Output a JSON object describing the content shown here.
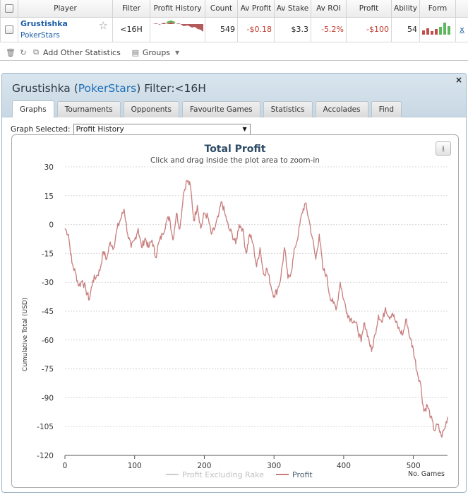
{
  "stats_table": {
    "headers": [
      "Player",
      "Filter",
      "Profit History",
      "Count",
      "Av Profit",
      "Av Stake",
      "Av ROI",
      "Profit",
      "Ability",
      "Form"
    ],
    "row": {
      "player_name": "Grustishka",
      "site": "PokerStars",
      "filter": "<16H",
      "count": "549",
      "av_profit": "-$0.18",
      "av_stake": "$3.3",
      "av_roi": "-5.2%",
      "profit": "-$100",
      "ability": "54",
      "remove": "x"
    },
    "toolbar": {
      "add_stats_label": "Add Other Statistics",
      "groups_label": "Groups"
    }
  },
  "window": {
    "title_prefix": "Grustishka (",
    "title_site": "PokerStars",
    "title_suffix": ") Filter:<16H",
    "close": "×",
    "tabs": [
      "Graphs",
      "Tournaments",
      "Opponents",
      "Favourite Games",
      "Statistics",
      "Accolades",
      "Find"
    ],
    "active_tab": "Graphs",
    "graph_selected_label": "Graph Selected:",
    "graph_selected_value": "Profit History"
  },
  "colors": {
    "negative": "#c0392b",
    "profit_line": "#c87d7d",
    "rake_line": "#cccccc",
    "accent": "#1d6fb8"
  },
  "chart_data": {
    "type": "line",
    "title": "Total Profit",
    "subtitle": "Click and drag inside the plot area to zoom-in",
    "ylabel": "Cumulative Total (USD)",
    "xlabel": "No. Games",
    "xlim": [
      0,
      549
    ],
    "ylim": [
      -120,
      30
    ],
    "x_ticks": [
      0,
      100,
      200,
      300,
      400,
      500
    ],
    "y_ticks": [
      30,
      15,
      0,
      -15,
      -30,
      -45,
      -60,
      -75,
      -90,
      -105,
      -120
    ],
    "legend": [
      "Profit Excluding Rake",
      "Profit"
    ],
    "series": [
      {
        "name": "Profit",
        "x": [
          0,
          5,
          10,
          15,
          20,
          25,
          30,
          35,
          40,
          45,
          50,
          55,
          60,
          65,
          70,
          75,
          80,
          85,
          90,
          95,
          100,
          105,
          110,
          115,
          120,
          125,
          130,
          135,
          140,
          145,
          150,
          155,
          160,
          165,
          170,
          175,
          180,
          185,
          190,
          195,
          200,
          205,
          210,
          215,
          220,
          225,
          230,
          235,
          240,
          245,
          250,
          255,
          260,
          265,
          270,
          275,
          280,
          285,
          290,
          295,
          300,
          305,
          310,
          315,
          320,
          325,
          330,
          335,
          340,
          345,
          350,
          355,
          360,
          365,
          370,
          375,
          380,
          385,
          390,
          395,
          400,
          405,
          410,
          415,
          420,
          425,
          430,
          435,
          440,
          445,
          450,
          455,
          460,
          465,
          470,
          475,
          480,
          485,
          490,
          495,
          500,
          505,
          510,
          515,
          520,
          525,
          530,
          535,
          540,
          545,
          549
        ],
        "y": [
          -2,
          -5,
          -20,
          -25,
          -32,
          -29,
          -34,
          -39,
          -29,
          -27,
          -24,
          -14,
          -18,
          -9,
          -12,
          -2,
          3,
          8,
          -5,
          -12,
          -8,
          -2,
          -12,
          -7,
          -12,
          -8,
          -17,
          -9,
          -5,
          1,
          4,
          -8,
          6,
          -2,
          16,
          23,
          20,
          2,
          10,
          -2,
          6,
          4,
          -5,
          -2,
          4,
          12,
          5,
          -2,
          -5,
          -10,
          0,
          -2,
          -15,
          -5,
          -10,
          -22,
          -12,
          -26,
          -23,
          -31,
          -37,
          -34,
          -27,
          -12,
          -28,
          -24,
          -12,
          -5,
          6,
          11,
          3,
          -7,
          -18,
          -5,
          -23,
          -26,
          -37,
          -41,
          -43,
          -30,
          -39,
          -46,
          -49,
          -50,
          -54,
          -61,
          -51,
          -58,
          -66,
          -57,
          -47,
          -51,
          -43,
          -48,
          -46,
          -51,
          -55,
          -57,
          -49,
          -59,
          -65,
          -76,
          -82,
          -97,
          -94,
          -100,
          -107,
          -104,
          -110,
          -106,
          -100
        ]
      },
      {
        "name": "Profit Excluding Rake",
        "x": [],
        "y": []
      }
    ]
  }
}
